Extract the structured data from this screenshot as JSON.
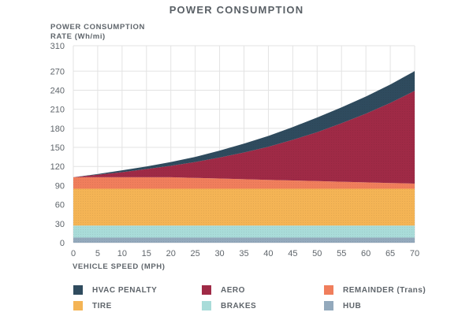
{
  "chart_data": {
    "type": "area",
    "title": "POWER CONSUMPTION",
    "ylabel": [
      "POWER CONSUMPTION",
      "RATE (Wh/mi)"
    ],
    "xlabel": "VEHICLE SPEED (MPH)",
    "x": [
      0,
      5,
      10,
      15,
      20,
      25,
      30,
      35,
      40,
      45,
      50,
      55,
      60,
      65,
      70
    ],
    "xlim": [
      0,
      70
    ],
    "ylim": [
      0,
      310
    ],
    "yticks": [
      0,
      30,
      60,
      90,
      120,
      150,
      180,
      210,
      240,
      270,
      310
    ],
    "stacked": true,
    "legend_position": "bottom",
    "series": [
      {
        "name": "HUB",
        "color": "#93a9bc",
        "values": [
          8,
          8,
          8,
          8,
          8,
          8,
          8,
          8,
          8,
          8,
          8,
          8,
          8,
          8,
          8
        ]
      },
      {
        "name": "BRAKES",
        "color": "#a9dcd9",
        "values": [
          19,
          19,
          19,
          19,
          19,
          19,
          19,
          19,
          19,
          19,
          19,
          19,
          19,
          19,
          19
        ]
      },
      {
        "name": "TIRE",
        "color": "#f4b455",
        "values": [
          58,
          58,
          58,
          58,
          58,
          58,
          58,
          58,
          58,
          58,
          58,
          58,
          58,
          58,
          58
        ]
      },
      {
        "name": "REMAINDER (Trans)",
        "color": "#f07e5c",
        "values": [
          18,
          18,
          18,
          18,
          18,
          17,
          16,
          15,
          14,
          13,
          12,
          11,
          10,
          9,
          8
        ]
      },
      {
        "name": "AERO",
        "color": "#9f2a46",
        "values": [
          0,
          4,
          8,
          13,
          18,
          25,
          33,
          42,
          52,
          64,
          77,
          92,
          108,
          126,
          146
        ]
      },
      {
        "name": "HVAC PENALTY",
        "color": "#2f4b5e",
        "values": [
          0,
          1,
          3,
          4,
          6,
          8,
          11,
          14,
          17,
          20,
          23,
          25,
          27,
          29,
          31
        ]
      }
    ],
    "legend_order": [
      "HVAC PENALTY",
      "AERO",
      "REMAINDER (Trans)",
      "TIRE",
      "BRAKES",
      "HUB"
    ]
  }
}
